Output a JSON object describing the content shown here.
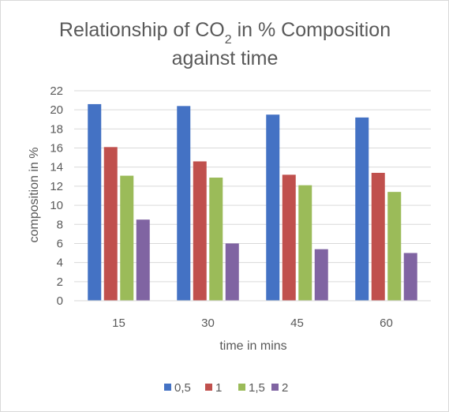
{
  "chart_data": {
    "type": "bar",
    "title": {
      "prefix": "Relationship of CO",
      "subscript": "2",
      "suffix": " in % Composition",
      "line2": "against time"
    },
    "xlabel": "time in mins",
    "ylabel": "composition in %",
    "categories": [
      "15",
      "30",
      "45",
      "60"
    ],
    "ylim": [
      0,
      22
    ],
    "yticks": [
      "0",
      "2",
      "4",
      "6",
      "8",
      "10",
      "12",
      "14",
      "16",
      "18",
      "20",
      "22"
    ],
    "grid": true,
    "legend_position": "bottom",
    "series": [
      {
        "name": "0,5",
        "color": "#4472c4",
        "values": [
          20.6,
          20.4,
          19.5,
          19.2
        ]
      },
      {
        "name": "1",
        "color": "#c0504d",
        "values": [
          16.1,
          14.6,
          13.2,
          13.4
        ]
      },
      {
        "name": "1,5",
        "color": "#9bbb59",
        "values": [
          13.1,
          12.9,
          12.1,
          11.4
        ]
      },
      {
        "name": "2",
        "color": "#8064a2",
        "values": [
          8.5,
          6.0,
          5.4,
          5.0
        ]
      }
    ]
  }
}
